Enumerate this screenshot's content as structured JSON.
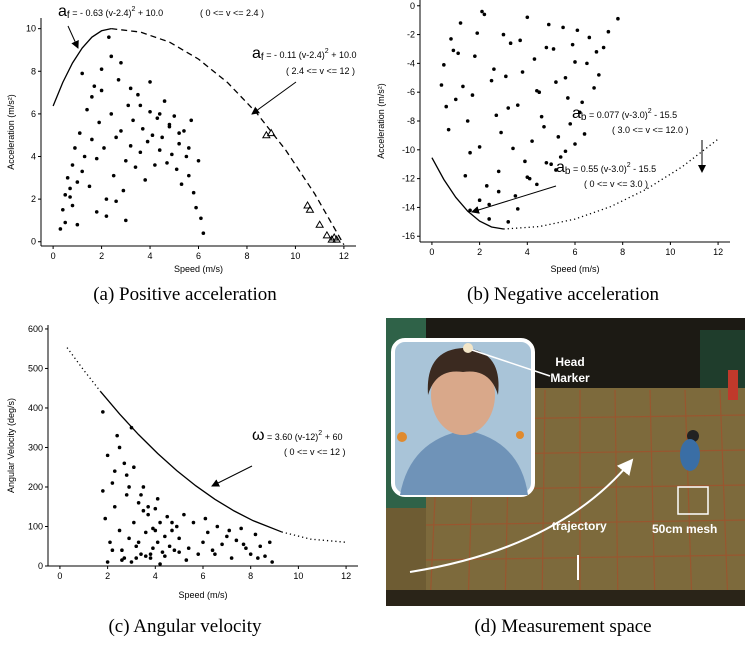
{
  "chart_data": [
    {
      "type": "scatter",
      "caption": "(a) Positive acceleration",
      "xlabel": "Speed (m/s)",
      "ylabel": "Acceleration (m/s²)",
      "xlim": [
        -0.5,
        12.5
      ],
      "ylim": [
        -0.2,
        10.5
      ],
      "xticks": [
        0,
        2,
        4,
        6,
        8,
        10,
        12
      ],
      "yticks": [
        0,
        2,
        4,
        6,
        8,
        10
      ],
      "series": [
        {
          "marker": "circle",
          "color": "#000000",
          "x": [
            0.3,
            0.4,
            0.5,
            0.5,
            0.6,
            0.7,
            0.8,
            0.8,
            0.9,
            1.0,
            1.0,
            1.1,
            1.2,
            1.3,
            1.4,
            1.5,
            1.6,
            1.7,
            1.8,
            1.9,
            2.0,
            2.1,
            2.2,
            2.3,
            2.4,
            2.5,
            2.6,
            2.7,
            2.8,
            2.9,
            3.0,
            3.1,
            3.2,
            3.3,
            3.4,
            3.5,
            3.6,
            3.7,
            3.8,
            3.9,
            4.0,
            4.1,
            4.2,
            4.3,
            4.4,
            4.5,
            4.6,
            4.7,
            4.8,
            4.9,
            5.0,
            5.1,
            5.2,
            5.3,
            5.4,
            5.5,
            5.6,
            5.7,
            5.8,
            5.9,
            6.0,
            6.1,
            6.2,
            1.2,
            1.6,
            2.0,
            2.4,
            2.8,
            3.2,
            3.6,
            4.0,
            4.4,
            4.8,
            5.2,
            5.6,
            2.2,
            2.6,
            3.0,
            1.8,
            0.7
          ],
          "y": [
            0.6,
            1.5,
            2.2,
            0.9,
            3.0,
            2.5,
            1.7,
            3.6,
            4.4,
            2.8,
            0.8,
            5.1,
            3.3,
            4.0,
            6.2,
            2.6,
            4.8,
            7.3,
            3.9,
            5.6,
            8.1,
            4.4,
            2.0,
            9.6,
            6.0,
            3.1,
            4.9,
            7.6,
            5.2,
            2.4,
            3.8,
            6.4,
            4.5,
            5.7,
            3.5,
            6.9,
            4.2,
            5.3,
            2.9,
            4.7,
            6.1,
            5.0,
            3.6,
            5.8,
            4.3,
            4.9,
            6.6,
            3.7,
            5.5,
            4.1,
            5.9,
            3.4,
            4.6,
            2.7,
            5.2,
            4.0,
            3.1,
            5.7,
            2.3,
            1.6,
            3.8,
            1.1,
            0.4,
            7.9,
            6.8,
            7.1,
            8.7,
            8.4,
            7.2,
            6.4,
            7.5,
            6.0,
            5.4,
            5.1,
            4.4,
            1.2,
            1.9,
            1.0,
            1.4,
            2.1
          ]
        },
        {
          "marker": "triangle",
          "color": "#000000",
          "x": [
            8.8,
            9.0,
            10.5,
            10.6,
            11.0,
            11.3,
            11.5,
            11.6,
            11.7
          ],
          "y": [
            5.0,
            5.1,
            1.7,
            1.5,
            0.8,
            0.3,
            0.1,
            0.2,
            0.1
          ]
        }
      ],
      "curves": [
        {
          "style": "solid",
          "x": [
            0,
            0.4,
            0.8,
            1.2,
            1.6,
            2.0,
            2.4
          ],
          "y": [
            6.37,
            7.48,
            8.39,
            9.09,
            9.6,
            9.9,
            10
          ]
        },
        {
          "style": "dashed",
          "x": [
            2.4,
            3.6,
            4.8,
            6.0,
            7.2,
            8.4,
            9.6,
            10.8,
            12.0
          ],
          "y": [
            10,
            9.84,
            9.37,
            8.57,
            7.47,
            6.04,
            4.3,
            2.24,
            -0.14
          ]
        }
      ],
      "annotations": [
        {
          "symbol": "a",
          "sub": "f",
          "expr": " = - 0.63 (v-2.4)",
          "power": "2",
          "rest": " + 10.0",
          "range": "( 0 <= v <= 2.4 )"
        },
        {
          "symbol": "a",
          "sub": "f",
          "expr": " = - 0.11 (v-2.4)",
          "power": "2",
          "rest": " + 10.0",
          "range": "( 2.4 <= v <= 12 )"
        }
      ]
    },
    {
      "type": "scatter",
      "caption": "(b) Negative acceleration",
      "xlabel": "Speed (m/s)",
      "ylabel": "Acceleration (m/s²)",
      "xlim": [
        -0.5,
        12.5
      ],
      "ylim": [
        -16.4,
        0.4
      ],
      "xticks": [
        0,
        2,
        4,
        6,
        8,
        10,
        12
      ],
      "yticks": [
        0,
        -2,
        -4,
        -6,
        -8,
        -10,
        -12,
        -14,
        -16
      ],
      "series": [
        {
          "marker": "circle",
          "color": "#000000",
          "x": [
            0.5,
            0.8,
            1.0,
            1.2,
            1.5,
            1.8,
            2.0,
            2.2,
            2.5,
            2.8,
            3.0,
            3.2,
            3.5,
            3.8,
            4.0,
            4.2,
            4.5,
            4.8,
            5.0,
            5.2,
            5.5,
            5.8,
            6.0,
            6.3,
            6.6,
            7.0,
            7.4,
            7.8,
            0.6,
            0.9,
            1.3,
            1.6,
            1.9,
            2.3,
            2.6,
            2.9,
            3.3,
            3.6,
            3.9,
            4.3,
            4.6,
            4.9,
            5.3,
            5.6,
            5.9,
            6.2,
            6.5,
            6.9,
            0.4,
            0.7,
            1.1,
            1.4,
            1.7,
            2.1,
            2.4,
            2.7,
            3.1,
            3.4,
            3.7,
            4.1,
            4.4,
            4.7,
            5.1,
            5.4,
            5.7,
            6.1,
            6.4,
            6.8,
            7.2,
            1.6,
            2.0,
            2.4,
            2.8,
            3.2,
            3.6,
            4.0,
            4.4,
            4.8,
            5.2,
            5.6,
            6.0
          ],
          "y": [
            -4.1,
            -2.3,
            -6.5,
            -1.2,
            -8.0,
            -3.5,
            -9.8,
            -0.6,
            -5.2,
            -11.5,
            -2.0,
            -7.1,
            -13.2,
            -4.6,
            -0.8,
            -9.4,
            -6.0,
            -2.9,
            -11.0,
            -5.3,
            -1.5,
            -8.2,
            -3.9,
            -6.7,
            -2.2,
            -4.8,
            -1.8,
            -0.9,
            -7.0,
            -3.1,
            -5.6,
            -10.2,
            -1.9,
            -12.5,
            -4.4,
            -8.8,
            -2.6,
            -6.9,
            -10.8,
            -3.7,
            -7.7,
            -1.3,
            -9.1,
            -5.0,
            -2.7,
            -7.4,
            -4.0,
            -3.2,
            -5.5,
            -8.6,
            -3.3,
            -11.8,
            -6.2,
            -0.4,
            -13.8,
            -7.6,
            -4.9,
            -9.9,
            -2.4,
            -12.0,
            -5.9,
            -8.4,
            -3.0,
            -10.5,
            -6.4,
            -1.7,
            -8.9,
            -5.7,
            -2.9,
            -14.2,
            -13.5,
            -14.8,
            -12.9,
            -15.0,
            -14.1,
            -11.9,
            -12.4,
            -10.9,
            -11.4,
            -10.1,
            -9.6
          ]
        }
      ],
      "curves": [
        {
          "style": "solid",
          "x": [
            0,
            0.5,
            1,
            1.5,
            2,
            2.5,
            3
          ],
          "y": [
            -10.55,
            -12.06,
            -13.3,
            -14.26,
            -14.95,
            -15.36,
            -15.5
          ]
        },
        {
          "style": "dotted",
          "x": [
            3,
            4.5,
            6,
            7.5,
            9,
            10.5,
            12
          ],
          "y": [
            -15.5,
            -15.33,
            -14.81,
            -13.94,
            -12.73,
            -11.17,
            -9.26
          ]
        }
      ],
      "annotations": [
        {
          "symbol": "a",
          "sub": "b",
          "expr": " = 0.077 (v-3.0)",
          "power": "2",
          "rest": " - 15.5",
          "range": "( 3.0 <= v <= 12.0 )"
        },
        {
          "symbol": "a",
          "sub": "b",
          "expr": " = 0.55 (v-3.0)",
          "power": "2",
          "rest": " - 15.5",
          "range": "( 0 <= v <= 3.0 )"
        }
      ]
    },
    {
      "type": "scatter",
      "caption": "(c) Angular velocity",
      "xlabel": "Speed (m/s)",
      "ylabel": "Angular Velocity (deg/s)",
      "xlim": [
        -0.5,
        12.5
      ],
      "ylim": [
        0,
        610
      ],
      "xticks": [
        0,
        2,
        4,
        6,
        8,
        10,
        12
      ],
      "yticks": [
        0,
        100,
        200,
        300,
        400,
        500,
        600
      ],
      "series": [
        {
          "marker": "circle",
          "color": "#000000",
          "x": [
            1.8,
            1.9,
            2.0,
            2.1,
            2.2,
            2.3,
            2.4,
            2.5,
            2.6,
            2.7,
            2.8,
            2.9,
            3.0,
            3.1,
            3.2,
            3.3,
            3.4,
            3.5,
            3.6,
            3.7,
            3.8,
            3.9,
            4.0,
            4.1,
            4.2,
            4.3,
            4.4,
            4.5,
            4.6,
            4.7,
            4.8,
            4.9,
            5.0,
            5.2,
            5.4,
            5.6,
            5.8,
            6.0,
            6.2,
            6.4,
            6.6,
            6.8,
            7.0,
            7.2,
            7.4,
            7.6,
            7.8,
            8.0,
            8.2,
            8.4,
            8.6,
            8.8,
            2.0,
            2.3,
            2.6,
            2.9,
            3.2,
            3.5,
            3.8,
            4.1,
            4.4,
            4.7,
            5.0,
            5.3,
            2.5,
            2.8,
            3.1,
            3.4,
            3.7,
            4.0,
            1.8,
            2.2,
            2.7,
            3.0,
            3.3,
            3.6,
            3.9,
            4.2,
            6.1,
            6.5,
            7.1,
            7.7,
            8.3,
            8.9
          ],
          "y": [
            390,
            120,
            280,
            60,
            210,
            150,
            330,
            90,
            40,
            260,
            180,
            70,
            350,
            110,
            50,
            160,
            30,
            200,
            85,
            130,
            20,
            95,
            145,
            60,
            110,
            35,
            75,
            125,
            50,
            90,
            40,
            100,
            70,
            130,
            45,
            110,
            30,
            60,
            85,
            40,
            100,
            55,
            75,
            20,
            65,
            95,
            45,
            30,
            80,
            50,
            25,
            60,
            10,
            240,
            15,
            200,
            20,
            140,
            30,
            170,
            25,
            110,
            35,
            15,
            300,
            230,
            250,
            180,
            150,
            90,
            190,
            40,
            20,
            10,
            60,
            25,
            45,
            5,
            120,
            30,
            90,
            55,
            20,
            10
          ]
        }
      ],
      "curves": [
        {
          "style": "dotted",
          "x": [
            0.3,
            1.0,
            1.7
          ],
          "y": [
            552.8,
            495.6,
            441.9
          ]
        },
        {
          "style": "solid",
          "x": [
            1.7,
            2.5,
            3.3,
            4.1,
            4.9,
            5.7,
            6.5,
            7.3,
            8.1,
            9.3
          ],
          "y": [
            441.9,
            384.9,
            332.5,
            284.7,
            241.5,
            202.9,
            168.9,
            139.5,
            114.8,
            86.2
          ]
        },
        {
          "style": "dotted",
          "x": [
            9.3,
            10.5,
            12
          ],
          "y": [
            86.2,
            68.1,
            60
          ]
        }
      ],
      "annotations": [
        {
          "symbol": "ω",
          "expr": " = 3.60 (v-12)",
          "power": "2",
          "rest": " + 60",
          "range": "( 0 <= v <= 12 )"
        }
      ]
    }
  ],
  "measurement_space": {
    "caption": "(d) Measurement space",
    "marker_label": [
      "Head",
      "Marker"
    ],
    "trajectory_label": "trajectory",
    "mesh_label": "50cm mesh"
  }
}
